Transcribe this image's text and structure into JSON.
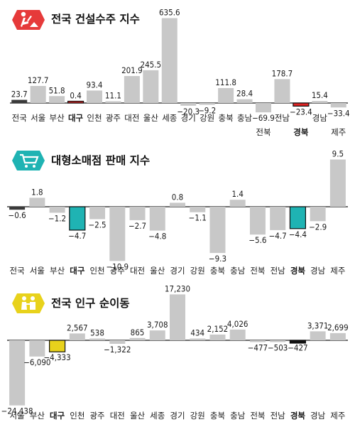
{
  "chart_data": [
    {
      "type": "bar",
      "title": "전국 건설수주 지수",
      "icon": "construction-worker-icon",
      "icon_color": "#e63a3a",
      "categories": [
        "전국",
        "서울",
        "부산",
        "대구",
        "인천",
        "광주",
        "대전",
        "울산",
        "세종",
        "경기",
        "강원",
        "충북",
        "충남",
        "전북",
        "전남",
        "경북",
        "경남",
        "제주"
      ],
      "values": [
        23.7,
        127.7,
        51.8,
        0.4,
        93.4,
        11.1,
        201.9,
        245.5,
        635.6,
        -20.3,
        -9.2,
        111.8,
        28.4,
        -69.9,
        178.7,
        -23.4,
        15.4,
        -33.4
      ],
      "labels": [
        "23.7",
        "127.7",
        "51.8",
        "0.4",
        "93.4",
        "11.1",
        "201.9",
        "245.5",
        "635.6",
        "−20.3",
        "−9.2",
        "111.8",
        "28.4",
        "−69.9",
        "178.7",
        "−23.4",
        "15.4",
        "−33.4"
      ],
      "highlight": [
        "대구",
        "경북"
      ],
      "highlight_color": "#e02424",
      "ylim": [
        -80,
        650
      ]
    },
    {
      "type": "bar",
      "title": "대형소매점 판매 지수",
      "icon": "shopping-cart-icon",
      "icon_color": "#1fb3b3",
      "categories": [
        "전국",
        "서울",
        "부산",
        "대구",
        "인천",
        "광주",
        "대전",
        "울산",
        "경기",
        "강원",
        "충북",
        "충남",
        "전북",
        "전남",
        "경북",
        "경남",
        "제주"
      ],
      "values": [
        -0.6,
        1.8,
        -1.2,
        -4.7,
        -2.5,
        -10.9,
        -2.7,
        -4.8,
        0.8,
        -1.1,
        -9.3,
        1.4,
        -5.6,
        -4.7,
        -4.4,
        -2.9,
        9.5
      ],
      "labels": [
        "−0.6",
        "1.8",
        "−1.2",
        "−4.7",
        "−2.5",
        "−10.9",
        "−2.7",
        "−4.8",
        "0.8",
        "−1.1",
        "−9.3",
        "1.4",
        "−5.6",
        "−4.7",
        "−4.4",
        "−2.9",
        "9.5"
      ],
      "highlight": [
        "대구",
        "경북"
      ],
      "highlight_color": "#1a9fa0",
      "ylim": [
        -12,
        10
      ]
    },
    {
      "type": "bar",
      "title": "전국 인구 순이동",
      "icon": "people-icon",
      "icon_color": "#e8d21c",
      "categories": [
        "서울",
        "부산",
        "대구",
        "인천",
        "광주",
        "대전",
        "울산",
        "세종",
        "경기",
        "강원",
        "충북",
        "충남",
        "전북",
        "전남",
        "경북",
        "경남",
        "제주"
      ],
      "values": [
        -24438,
        -6090,
        -4333,
        2567,
        538,
        -1322,
        865,
        3708,
        17230,
        434,
        2152,
        4026,
        -477,
        -503,
        -427,
        3371,
        2699
      ],
      "labels": [
        "−24,438",
        "−6,090",
        "−4,333",
        "2,567",
        "538",
        "−1,322",
        "865",
        "3,708",
        "17,230",
        "434",
        "2,152",
        "4,026",
        "−477",
        "−503",
        "−427",
        "3,371",
        "2,699"
      ],
      "highlight": [
        "대구",
        "경북"
      ],
      "highlight_color": "#a8961a",
      "ylim": [
        -25000,
        18000
      ]
    }
  ]
}
